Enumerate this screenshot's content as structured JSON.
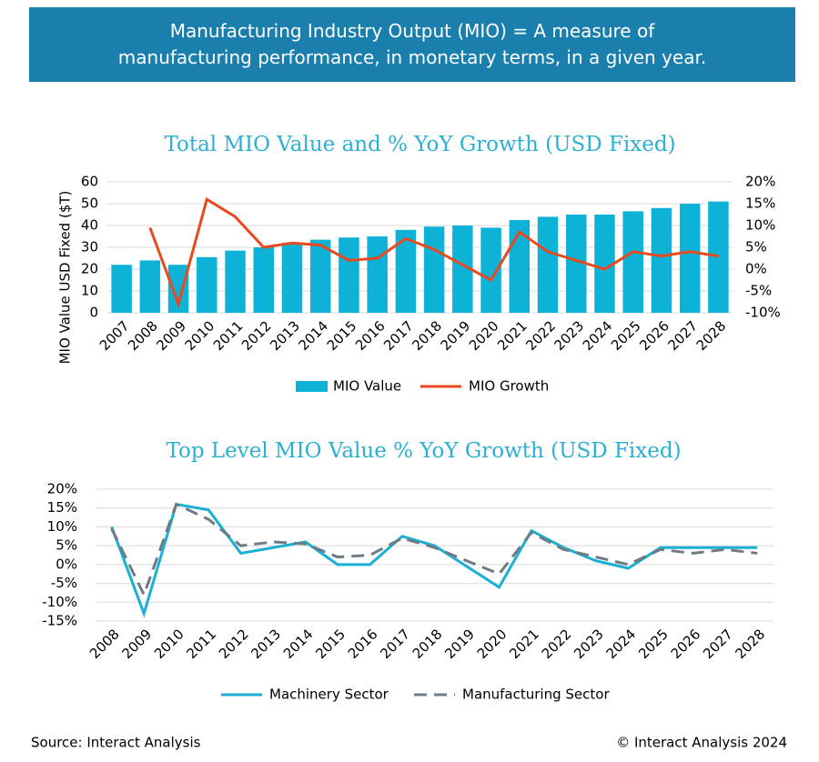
{
  "header": {
    "text": "Manufacturing Industry Output (MIO) = A measure of manufacturing performance, in monetary terms, in a given year."
  },
  "chart_data": [
    {
      "type": "combo",
      "title": "Total MIO Value and % YoY Growth (USD Fixed)",
      "y_label": "MIO Value USD Fixed ($T)",
      "categories": [
        "2007",
        "2008",
        "2009",
        "2010",
        "2011",
        "2012",
        "2013",
        "2014",
        "2015",
        "2016",
        "2017",
        "2018",
        "2019",
        "2020",
        "2021",
        "2022",
        "2023",
        "2024",
        "2025",
        "2026",
        "2027",
        "2028"
      ],
      "series": [
        {
          "name": "MIO Value",
          "type": "bar",
          "color": "#0db2d6",
          "values": [
            22,
            24,
            22,
            25.5,
            28.5,
            30,
            32,
            33.5,
            34.5,
            35,
            38,
            39.5,
            40,
            39,
            42.5,
            44,
            45,
            45,
            46.5,
            48,
            50,
            51
          ]
        },
        {
          "name": "MIO Growth",
          "type": "line",
          "axis": "y2",
          "color": "#e8491d",
          "values": [
            null,
            9.5,
            -8,
            16,
            12,
            5,
            6,
            5.5,
            2,
            2.5,
            7,
            4.5,
            1,
            -2.5,
            8.5,
            4,
            2,
            0,
            4,
            3,
            4,
            3
          ]
        }
      ],
      "ylim": [
        0,
        60
      ],
      "yticks": [
        0,
        10,
        20,
        30,
        40,
        50,
        60
      ],
      "y2lim": [
        -10,
        20
      ],
      "y2ticks": [
        {
          "value": -10,
          "label": "-10%"
        },
        {
          "value": -5,
          "label": "-5%"
        },
        {
          "value": 0,
          "label": "0%"
        },
        {
          "value": 5,
          "label": "5%"
        },
        {
          "value": 10,
          "label": "10%"
        },
        {
          "value": 15,
          "label": "15%"
        },
        {
          "value": 20,
          "label": "20%"
        }
      ],
      "grid": true,
      "legend": "bottom"
    },
    {
      "type": "line",
      "title": "Top Level MIO Value % YoY Growth (USD Fixed)",
      "categories": [
        "2008",
        "2009",
        "2010",
        "2011",
        "2012",
        "2013",
        "2014",
        "2015",
        "2016",
        "2017",
        "2018",
        "2019",
        "2020",
        "2021",
        "2022",
        "2023",
        "2024",
        "2025",
        "2026",
        "2027",
        "2028"
      ],
      "series": [
        {
          "name": "Machinery Sector",
          "color": "#1ab0d4",
          "style": "solid",
          "values": [
            10,
            -13,
            16,
            14.5,
            3,
            4.5,
            6,
            0,
            0,
            7.5,
            5,
            -0.5,
            -6,
            9,
            4.5,
            1,
            -1,
            4.5,
            4.5,
            4.5,
            4.5
          ]
        },
        {
          "name": "Manufacturing Sector",
          "color": "#6d7b84",
          "style": "dashed",
          "values": [
            9.5,
            -8,
            16,
            12,
            5,
            6,
            5.5,
            2,
            2.5,
            7,
            4.5,
            1,
            -2.5,
            8.5,
            4,
            2,
            0,
            4,
            3,
            4,
            3
          ]
        }
      ],
      "ylim": [
        -15,
        20
      ],
      "yticks": [
        {
          "value": -15,
          "label": "-15%"
        },
        {
          "value": -10,
          "label": "-10%"
        },
        {
          "value": -5,
          "label": "-5%"
        },
        {
          "value": 0,
          "label": "0%"
        },
        {
          "value": 5,
          "label": "5%"
        },
        {
          "value": 10,
          "label": "10%"
        },
        {
          "value": 15,
          "label": "15%"
        },
        {
          "value": 20,
          "label": "20%"
        }
      ],
      "grid": true,
      "legend": "bottom"
    }
  ],
  "footer": {
    "source": "Source: Interact Analysis",
    "copyright": "© Interact Analysis 2024"
  }
}
